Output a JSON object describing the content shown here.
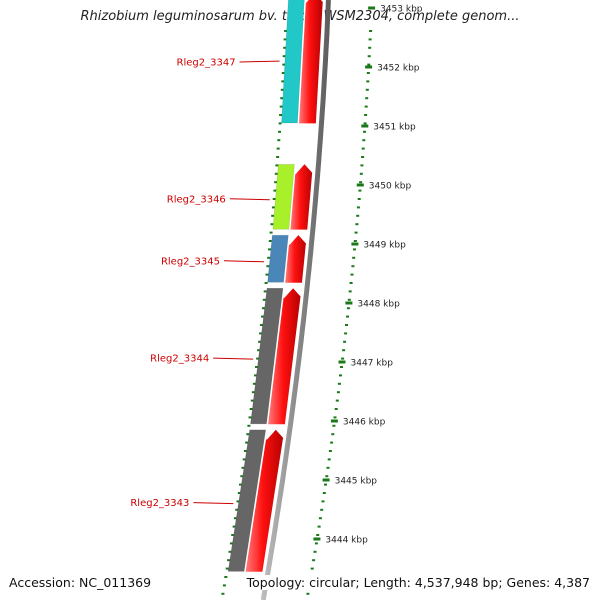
{
  "header": {
    "title": "Rhizobium leguminosarum bv. trifolii WSM2304, complete genom..."
  },
  "footer": {
    "accession": "Accession: NC_011369",
    "summary": "Topology: circular; Length: 4,537,948 bp; Genes: 4,387"
  },
  "colors": {
    "forward_gene": "#ff0000",
    "label": "#cc0000",
    "tick": "#1a7a1a",
    "backbone": "#808080"
  },
  "chart_data": {
    "type": "linear-genome-map",
    "genes": [
      {
        "label": "Rleg2_3347",
        "cog_color": "#22c8c8",
        "start_kbp": 3451.0,
        "end_kbp": 3453.3
      },
      {
        "label": "Rleg2_3346",
        "cog_color": "#a8f02a",
        "start_kbp": 3449.2,
        "end_kbp": 3450.4
      },
      {
        "label": "Rleg2_3345",
        "cog_color": "#4a86b8",
        "start_kbp": 3448.3,
        "end_kbp": 3449.2
      },
      {
        "label": "Rleg2_3344",
        "cog_color": "#666666",
        "start_kbp": 3445.9,
        "end_kbp": 3448.3
      },
      {
        "label": "Rleg2_3343",
        "cog_color": "#666666",
        "start_kbp": 3443.4,
        "end_kbp": 3445.9
      }
    ],
    "forward_arrows": [
      {
        "start_kbp": 3451.0,
        "end_kbp": 3453.3
      },
      {
        "start_kbp": 3449.2,
        "end_kbp": 3450.4
      },
      {
        "start_kbp": 3448.3,
        "end_kbp": 3449.2
      },
      {
        "start_kbp": 3445.9,
        "end_kbp": 3448.3
      },
      {
        "start_kbp": 3443.4,
        "end_kbp": 3445.9
      }
    ],
    "ticks": [
      {
        "kbp": 3453,
        "label": "3453 kbp"
      },
      {
        "kbp": 3452,
        "label": "3452 kbp"
      },
      {
        "kbp": 3451,
        "label": "3451 kbp"
      },
      {
        "kbp": 3450,
        "label": "3450 kbp"
      },
      {
        "kbp": 3449,
        "label": "3449 kbp"
      },
      {
        "kbp": 3448,
        "label": "3448 kbp"
      },
      {
        "kbp": 3447,
        "label": "3447 kbp"
      },
      {
        "kbp": 3446,
        "label": "3446 kbp"
      },
      {
        "kbp": 3445,
        "label": "3445 kbp"
      },
      {
        "kbp": 3444,
        "label": "3444 kbp"
      }
    ]
  }
}
